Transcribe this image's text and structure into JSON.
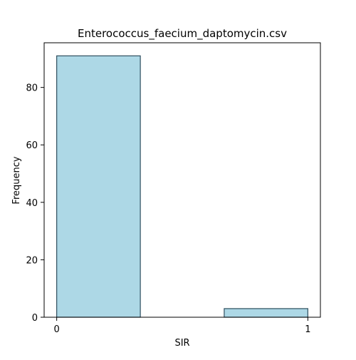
{
  "chart_data": {
    "type": "bar",
    "title": "Enterococcus_faecium_daptomycin.csv",
    "xlabel": "SIR",
    "ylabel": "Frequency",
    "bins": [
      {
        "x_start": 0.0,
        "x_end": 0.333,
        "count": 91
      },
      {
        "x_start": 0.667,
        "x_end": 1.0,
        "count": 3
      }
    ],
    "xlim": [
      -0.05,
      1.05
    ],
    "ylim": [
      0,
      95.55
    ],
    "xticks": [
      {
        "value": 0,
        "label": "0"
      },
      {
        "value": 1,
        "label": "1"
      }
    ],
    "yticks": [
      {
        "value": 0,
        "label": "0"
      },
      {
        "value": 20,
        "label": "20"
      },
      {
        "value": 40,
        "label": "40"
      },
      {
        "value": 60,
        "label": "60"
      },
      {
        "value": 80,
        "label": "80"
      }
    ],
    "grid": false,
    "colors": {
      "bar_fill": "#add8e6",
      "bar_edge": "#2f4f5f",
      "axes": "#000000"
    }
  }
}
